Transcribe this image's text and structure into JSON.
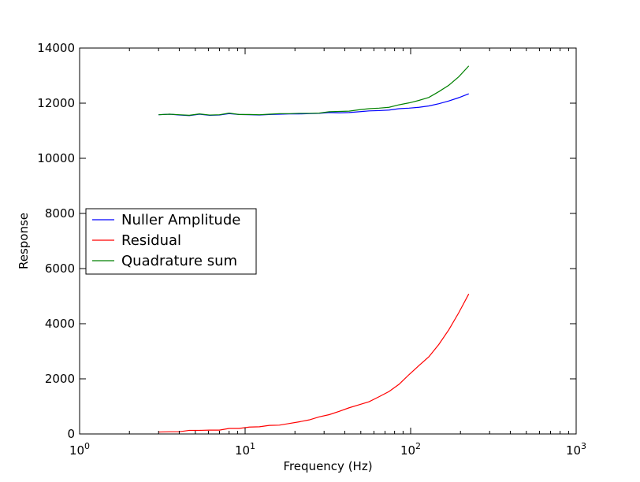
{
  "chart_data": {
    "type": "line",
    "title": "",
    "xlabel": "Frequency (Hz)",
    "ylabel": "Response",
    "xscale": "log",
    "xlim": [
      1,
      1000
    ],
    "ylim": [
      0,
      14000
    ],
    "x_ticks": [
      1,
      10,
      100,
      1000
    ],
    "y_ticks": [
      0,
      2000,
      4000,
      6000,
      8000,
      10000,
      12000,
      14000
    ],
    "y_tick_labels": [
      "0",
      "2000",
      "4000",
      "6000",
      "8000",
      "10000",
      "12000",
      "14000"
    ],
    "grid": false,
    "legend_position": "center-left",
    "series": [
      {
        "name": "Nuller Amplitude",
        "color": "#0000ff",
        "x": [
          3.0,
          3.5,
          4.0,
          4.6,
          5.3,
          6.1,
          7.0,
          8.0,
          9.2,
          10.6,
          12.2,
          14.0,
          16.1,
          18.5,
          21.2,
          24.4,
          28.0,
          32.2,
          37.0,
          42.5,
          48.8,
          56.1,
          64.4,
          74.0,
          85.0,
          97.7,
          112.2,
          128.9,
          148.1,
          170.1,
          195.4,
          224.5
        ],
        "y": [
          11580,
          11600,
          11570,
          11550,
          11600,
          11560,
          11570,
          11620,
          11590,
          11580,
          11570,
          11590,
          11600,
          11610,
          11610,
          11620,
          11630,
          11660,
          11650,
          11660,
          11690,
          11720,
          11730,
          11750,
          11800,
          11820,
          11850,
          11900,
          11980,
          12080,
          12200,
          12340
        ]
      },
      {
        "name": "Residual",
        "color": "#ff0000",
        "x": [
          3.0,
          3.5,
          4.0,
          4.6,
          5.3,
          6.1,
          7.0,
          8.0,
          9.2,
          10.6,
          12.2,
          14.0,
          16.1,
          18.5,
          21.2,
          24.4,
          28.0,
          32.2,
          37.0,
          42.5,
          48.8,
          56.1,
          64.4,
          74.0,
          85.0,
          97.7,
          112.2,
          128.9,
          148.1,
          170.1,
          195.4,
          224.5
        ],
        "y": [
          70,
          80,
          80,
          130,
          130,
          140,
          140,
          200,
          200,
          250,
          260,
          310,
          320,
          380,
          440,
          510,
          620,
          700,
          820,
          950,
          1060,
          1170,
          1350,
          1540,
          1800,
          2150,
          2480,
          2800,
          3250,
          3780,
          4400,
          5080
        ]
      },
      {
        "name": "Quadrature sum",
        "color": "#008000",
        "x": [
          3.0,
          3.5,
          4.0,
          4.6,
          5.3,
          6.1,
          7.0,
          8.0,
          9.2,
          10.6,
          12.2,
          14.0,
          16.1,
          18.5,
          21.2,
          24.4,
          28.0,
          32.2,
          37.0,
          42.5,
          48.8,
          56.1,
          64.4,
          74.0,
          85.0,
          97.7,
          112.2,
          128.9,
          148.1,
          170.1,
          195.4,
          224.5
        ],
        "y": [
          11580,
          11600,
          11580,
          11560,
          11610,
          11570,
          11580,
          11640,
          11590,
          11590,
          11580,
          11600,
          11620,
          11620,
          11630,
          11630,
          11640,
          11690,
          11700,
          11710,
          11760,
          11800,
          11820,
          11850,
          11940,
          12010,
          12100,
          12210,
          12420,
          12650,
          12960,
          13350
        ]
      }
    ]
  }
}
